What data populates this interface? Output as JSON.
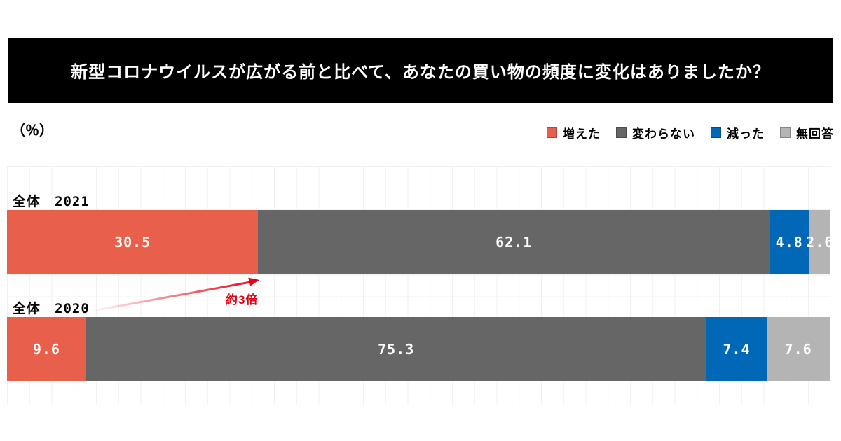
{
  "title": "新型コロナウイルスが広がる前と比べて、あなたの買い物の頻度に変化はありましたか？",
  "unit_label": "（％）",
  "legend": [
    {
      "label": "増えた",
      "color": "#e8604b"
    },
    {
      "label": "変わらない",
      "color": "#666666"
    },
    {
      "label": "減った",
      "color": "#0068b7"
    },
    {
      "label": "無回答",
      "color": "#b4b4b4"
    }
  ],
  "annotation": {
    "text": "約3倍",
    "color": "#e60012"
  },
  "chart_data": {
    "type": "bar",
    "stacked": true,
    "orientation": "horizontal",
    "unit": "%",
    "xlim": [
      0,
      100
    ],
    "grid": true,
    "legend_position": "top-right",
    "categories": [
      "全体　2021",
      "全体　2020"
    ],
    "series": [
      {
        "name": "増えた",
        "color": "#e8604b",
        "values": [
          30.5,
          9.6
        ]
      },
      {
        "name": "変わらない",
        "color": "#666666",
        "values": [
          62.1,
          75.3
        ]
      },
      {
        "name": "減った",
        "color": "#0068b7",
        "values": [
          4.8,
          7.4
        ]
      },
      {
        "name": "無回答",
        "color": "#b4b4b4",
        "values": [
          2.6,
          7.6
        ]
      }
    ],
    "annotations": [
      {
        "text": "約3倍",
        "color": "#e60012",
        "from_category": "全体　2020",
        "to_category": "全体　2021",
        "refers_to_series": "増えた"
      }
    ]
  }
}
